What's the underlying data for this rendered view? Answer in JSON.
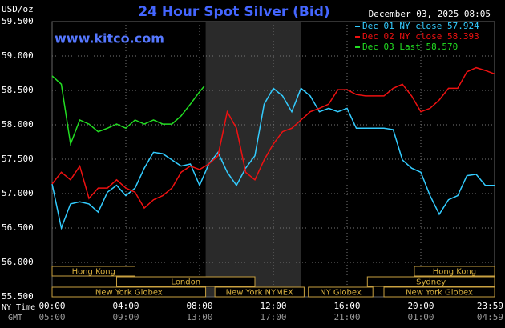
{
  "chart_data": {
    "type": "line",
    "title": "24 Hour Spot Silver (Bid)",
    "unit": "USD/oz",
    "source": "www.kitco.com",
    "timestamp": "December 03, 2025 08:05",
    "ylim": [
      55.5,
      59.5
    ],
    "yticks": [
      {
        "value": 55.5,
        "label": "55.500"
      },
      {
        "value": 56.0,
        "label": "56.000"
      },
      {
        "value": 56.5,
        "label": "56.500"
      },
      {
        "value": 57.0,
        "label": "57.000"
      },
      {
        "value": 57.5,
        "label": "57.500"
      },
      {
        "value": 58.0,
        "label": "58.000"
      },
      {
        "value": 58.5,
        "label": "58.500"
      },
      {
        "value": 59.0,
        "label": "59.000"
      },
      {
        "value": 59.5,
        "label": "59.500"
      }
    ],
    "xlim": [
      0,
      24
    ],
    "x_row_label": "NY Time",
    "x2_row_label": "GMT",
    "xticks": [
      {
        "value": 0,
        "label": "00:00"
      },
      {
        "value": 4,
        "label": "04:00"
      },
      {
        "value": 8,
        "label": "08:00"
      },
      {
        "value": 12,
        "label": "12:00"
      },
      {
        "value": 16,
        "label": "16:00"
      },
      {
        "value": 20,
        "label": "20:00"
      },
      {
        "value": 24,
        "label": "23:59"
      }
    ],
    "x2ticks": [
      {
        "value": 0,
        "label": "05:00"
      },
      {
        "value": 4,
        "label": "09:00"
      },
      {
        "value": 8,
        "label": "13:00"
      },
      {
        "value": 12,
        "label": "17:00"
      },
      {
        "value": 16,
        "label": "21:00"
      },
      {
        "value": 20,
        "label": "01:00"
      },
      {
        "value": 24,
        "label": "04:59"
      }
    ],
    "grid": true,
    "highlight": [
      8.33,
      13.5
    ],
    "sessions": [
      {
        "name": "Hong Kong",
        "start": 0,
        "end": 4.5,
        "row": 0
      },
      {
        "name": "London",
        "start": 3.5,
        "end": 11,
        "row": 1
      },
      {
        "name": "New York Globex",
        "start": 0,
        "end": 8.33,
        "row": 2
      },
      {
        "name": "New York NYMEX",
        "start": 8.83,
        "end": 13.67,
        "row": 2
      },
      {
        "name": "NY Globex",
        "start": 13.9,
        "end": 17.4,
        "row": 2
      },
      {
        "name": "Hong Kong",
        "start": 19.65,
        "end": 24,
        "row": 0
      },
      {
        "name": "Sydney",
        "start": 17.1,
        "end": 24,
        "row": 1
      },
      {
        "name": "New York Globex",
        "start": 18,
        "end": 24,
        "row": 2
      }
    ],
    "series": [
      {
        "name": "Dec 01 NY close 57.924",
        "color": "#33ccff",
        "x": [
          0,
          0.5,
          1,
          1.5,
          2,
          2.5,
          3,
          3.5,
          4,
          4.5,
          5,
          5.5,
          6,
          6.5,
          7,
          7.5,
          8,
          8.5,
          9,
          9.5,
          10,
          10.5,
          11,
          11.5,
          12,
          12.5,
          13,
          13.5,
          14,
          14.5,
          15,
          15.5,
          16,
          16.5,
          17,
          17.5,
          18,
          18.5,
          19,
          19.5,
          20,
          20.5,
          21,
          21.5,
          22,
          22.5,
          23,
          23.5,
          24
        ],
        "values": [
          57.14,
          56.5,
          56.85,
          56.88,
          56.85,
          56.73,
          57.02,
          57.12,
          56.97,
          57.08,
          57.37,
          57.6,
          57.58,
          57.49,
          57.4,
          57.43,
          57.12,
          57.43,
          57.6,
          57.31,
          57.12,
          57.37,
          57.55,
          58.3,
          58.53,
          58.42,
          58.19,
          58.53,
          58.42,
          58.19,
          58.24,
          58.19,
          58.24,
          57.95,
          57.95,
          57.95,
          57.95,
          57.93,
          57.49,
          57.37,
          57.31,
          56.97,
          56.7,
          56.91,
          56.97,
          57.26,
          57.28,
          57.12,
          57.12
        ]
      },
      {
        "name": "Dec 02 NY close 58.393",
        "color": "#ee1111",
        "x": [
          0,
          0.5,
          1,
          1.5,
          2,
          2.5,
          3,
          3.5,
          4,
          4.5,
          5,
          5.5,
          6,
          6.5,
          7,
          7.5,
          8,
          8.5,
          9,
          9.5,
          10,
          10.5,
          11,
          11.5,
          12,
          12.5,
          13,
          13.5,
          14,
          14.5,
          15,
          15.5,
          16,
          16.5,
          17,
          17.5,
          18,
          18.5,
          19,
          19.5,
          20,
          20.5,
          21,
          21.5,
          22,
          22.5,
          23,
          23.5,
          24
        ],
        "values": [
          57.14,
          57.31,
          57.2,
          57.4,
          56.93,
          57.08,
          57.08,
          57.2,
          57.08,
          57.02,
          56.79,
          56.91,
          56.97,
          57.08,
          57.31,
          57.4,
          57.35,
          57.43,
          57.55,
          58.19,
          57.95,
          57.31,
          57.2,
          57.49,
          57.72,
          57.9,
          57.95,
          58.07,
          58.19,
          58.24,
          58.3,
          58.51,
          58.51,
          58.44,
          58.42,
          58.42,
          58.42,
          58.53,
          58.59,
          58.42,
          58.19,
          58.24,
          58.36,
          58.53,
          58.53,
          58.77,
          58.83,
          58.79,
          58.74
        ]
      },
      {
        "name": "Dec 03 Last 58.570",
        "color": "#22dd22",
        "x": [
          0,
          0.5,
          1,
          1.5,
          2,
          2.5,
          3,
          3.5,
          4,
          4.5,
          5,
          5.5,
          6,
          6.5,
          7,
          7.5,
          8,
          8.25
        ],
        "values": [
          58.71,
          58.59,
          57.72,
          58.07,
          58.01,
          57.9,
          57.95,
          58.01,
          57.95,
          58.07,
          58.01,
          58.07,
          58.01,
          58.01,
          58.13,
          58.3,
          58.48,
          58.56
        ]
      }
    ]
  }
}
